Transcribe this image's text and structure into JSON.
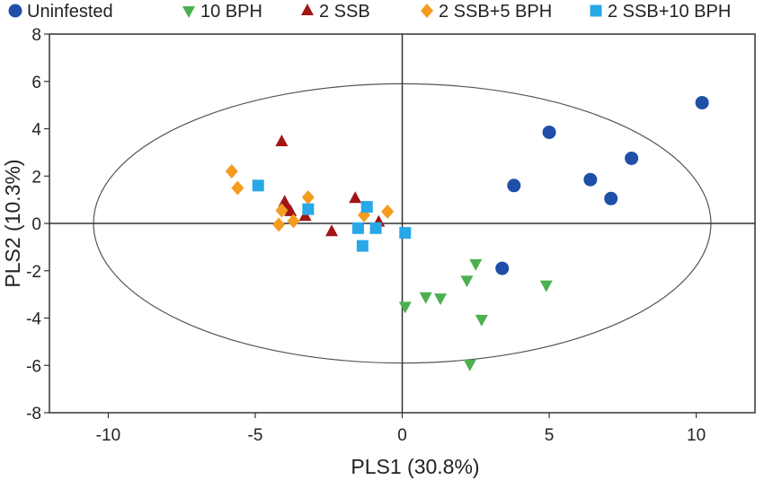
{
  "chart_data": {
    "type": "scatter",
    "xlabel": "PLS1 (30.8%)",
    "ylabel": "PLS2 (10.3%)",
    "xlim": [
      -12,
      12
    ],
    "ylim": [
      -8,
      8
    ],
    "xticks": [
      -10,
      -5,
      0,
      5,
      10
    ],
    "yticks": [
      -8,
      -6,
      -4,
      -2,
      0,
      2,
      4,
      6,
      8
    ],
    "reference_lines": {
      "x": 0,
      "y": 0
    },
    "confidence_ellipse": {
      "center": [
        0,
        0
      ],
      "semi_axis_x": 10.5,
      "semi_axis_y": 5.9
    },
    "grid": false,
    "legend_position": "top",
    "series": [
      {
        "name": "Uninfested",
        "marker": "circle",
        "color": "#1f4fa8",
        "points": [
          [
            3.8,
            1.6
          ],
          [
            5.0,
            3.85
          ],
          [
            6.4,
            1.85
          ],
          [
            7.1,
            1.05
          ],
          [
            7.8,
            2.75
          ],
          [
            10.2,
            5.1
          ],
          [
            3.4,
            -1.9
          ]
        ]
      },
      {
        "name": "10 BPH",
        "marker": "triangle-down",
        "color": "#4caf50",
        "points": [
          [
            0.1,
            -3.5
          ],
          [
            0.8,
            -3.1
          ],
          [
            1.3,
            -3.15
          ],
          [
            2.2,
            -2.4
          ],
          [
            2.5,
            -1.7
          ],
          [
            2.7,
            -4.05
          ],
          [
            2.3,
            -5.95
          ],
          [
            4.9,
            -2.6
          ]
        ]
      },
      {
        "name": "2 SSB",
        "marker": "triangle-up",
        "color": "#a31515",
        "points": [
          [
            -4.1,
            3.45
          ],
          [
            -4.0,
            0.9
          ],
          [
            -3.9,
            0.65
          ],
          [
            -3.8,
            0.5
          ],
          [
            -3.3,
            0.3
          ],
          [
            -2.4,
            -0.35
          ],
          [
            -1.6,
            1.05
          ],
          [
            -0.8,
            0.05
          ]
        ]
      },
      {
        "name": "2 SSB+5 BPH",
        "marker": "diamond",
        "color": "#f39c1f",
        "points": [
          [
            -5.8,
            2.2
          ],
          [
            -5.6,
            1.5
          ],
          [
            -4.2,
            -0.05
          ],
          [
            -4.1,
            0.55
          ],
          [
            -3.7,
            0.1
          ],
          [
            -3.2,
            1.1
          ],
          [
            -1.3,
            0.35
          ],
          [
            -0.5,
            0.5
          ]
        ]
      },
      {
        "name": "2 SSB+10 BPH",
        "marker": "square",
        "color": "#29a8e8",
        "points": [
          [
            -4.9,
            1.6
          ],
          [
            -3.2,
            0.6
          ],
          [
            -1.5,
            -0.2
          ],
          [
            -1.2,
            0.7
          ],
          [
            -0.9,
            -0.2
          ],
          [
            0.1,
            -0.4
          ],
          [
            -1.35,
            -0.95
          ]
        ]
      }
    ]
  }
}
